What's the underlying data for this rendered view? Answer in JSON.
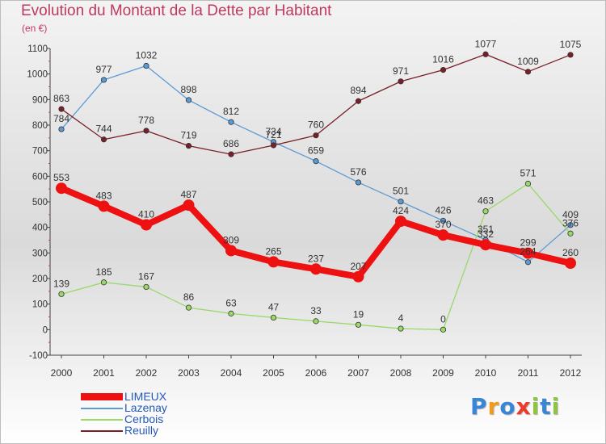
{
  "chart_data": {
    "type": "line",
    "title": "Evolution du Montant de la Dette par Habitant",
    "subtitle": "(en €)",
    "categories": [
      "2000",
      "2001",
      "2002",
      "2003",
      "2004",
      "2005",
      "2006",
      "2007",
      "2008",
      "2009",
      "2010",
      "2011",
      "2012"
    ],
    "ylim": [
      -100,
      1100
    ],
    "yticks": [
      -100,
      0,
      100,
      200,
      300,
      400,
      500,
      600,
      700,
      800,
      900,
      1000,
      1100
    ],
    "grid": false,
    "legend_position": "bottom-left",
    "series": [
      {
        "name": "LIMEUX",
        "color": "#ee1111",
        "thick": true,
        "values": [
          553,
          483,
          410,
          487,
          309,
          265,
          237,
          207,
          424,
          370,
          332,
          299,
          260
        ]
      },
      {
        "name": "Lazenay",
        "color": "#5b9bd5",
        "thick": false,
        "values": [
          784,
          977,
          1032,
          898,
          812,
          734,
          659,
          576,
          501,
          426,
          351,
          264,
          409
        ]
      },
      {
        "name": "Cerbois",
        "color": "#9ad86a",
        "thick": false,
        "values": [
          139,
          185,
          167,
          86,
          63,
          47,
          33,
          19,
          4,
          0,
          463,
          571,
          376
        ]
      },
      {
        "name": "Reuilly",
        "color": "#7a1f28",
        "thick": false,
        "values": [
          863,
          744,
          778,
          719,
          686,
          721,
          760,
          894,
          971,
          1016,
          1077,
          1009,
          1075
        ]
      }
    ]
  },
  "logo": {
    "letters": [
      "P",
      "r",
      "o",
      "x",
      "i",
      "t",
      "i"
    ],
    "colors": [
      "#3a86d6",
      "#f29a1a",
      "#3a86d6",
      "#ee3a2a",
      "#8cc63f",
      "#3a86d6",
      "#8cc63f"
    ]
  }
}
